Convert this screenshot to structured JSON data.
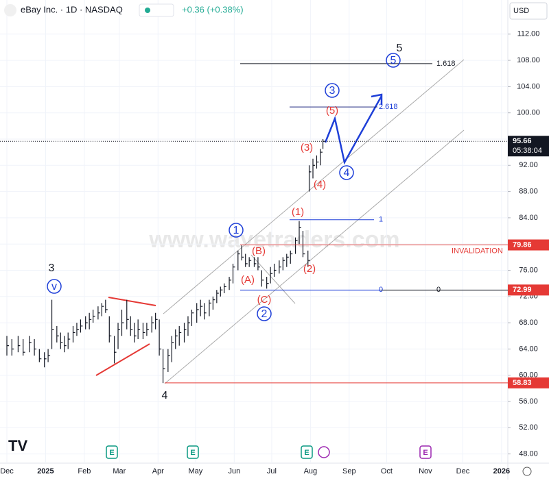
{
  "chart_data": {
    "type": "ohlc",
    "title": "eBay Inc. · 1D · NASDAQ",
    "change": "+0.36 (+0.38%)",
    "currency": "USD",
    "watermark": "www.wavetraders.com",
    "countdown": "05:38:04",
    "invalidation": "INVALIDATION",
    "ylim": [
      46.6,
      117.2
    ],
    "yticks": [
      48.0,
      52.0,
      56.0,
      60.0,
      64.0,
      68.0,
      72.0,
      76.0,
      80.0,
      84.0,
      88.0,
      92.0,
      96.0,
      100.0,
      104.0,
      108.0,
      112.0
    ],
    "ytick_labels": [
      "48.00",
      "52.00",
      "56.00",
      "60.00",
      "64.00",
      "68.00",
      "72.00",
      "76.00",
      "80.00",
      "84.00",
      "88.00",
      "92.00",
      "96.00",
      "100.00",
      "104.00",
      "108.00",
      "112.00"
    ],
    "xlim": [
      -5.5,
      401
    ],
    "xticks": [
      {
        "value": 0,
        "label": "Dec"
      },
      {
        "value": 31,
        "label": "2025"
      },
      {
        "value": 62,
        "label": "Feb"
      },
      {
        "value": 90,
        "label": "Mar"
      },
      {
        "value": 121,
        "label": "Apr"
      },
      {
        "value": 151,
        "label": "May"
      },
      {
        "value": 182,
        "label": "Jun"
      },
      {
        "value": 212,
        "label": "Jul"
      },
      {
        "value": 243,
        "label": "Aug"
      },
      {
        "value": 274,
        "label": "Sep"
      },
      {
        "value": 304,
        "label": "Oct"
      },
      {
        "value": 335,
        "label": "Nov"
      },
      {
        "value": 365,
        "label": "Dec"
      },
      {
        "value": 396,
        "label": "2026"
      }
    ],
    "bars": {
      "x": [
        0,
        4,
        9,
        13,
        18,
        22,
        26,
        30,
        33,
        36,
        40,
        43,
        46,
        49,
        53,
        56,
        59,
        63,
        66,
        69,
        73,
        76,
        79,
        82,
        86,
        89,
        92,
        96,
        99,
        102,
        105,
        109,
        112,
        116,
        119,
        122,
        125,
        129,
        132,
        135,
        138,
        142,
        145,
        148,
        152,
        155,
        158,
        162,
        165,
        168,
        171,
        174,
        178,
        181,
        185,
        188,
        191,
        194,
        198,
        201,
        204,
        208,
        211,
        214,
        218,
        221,
        224,
        227,
        231,
        234,
        237,
        241,
        242,
        245,
        248,
        251,
        253
      ],
      "high": [
        66,
        65.5,
        66,
        65.5,
        66,
        65.5,
        64,
        63.5,
        64,
        71.5,
        67.5,
        66.5,
        66,
        66.5,
        67.5,
        68,
        68.5,
        69,
        69.5,
        70,
        70.5,
        71,
        71.5,
        69,
        66,
        68,
        70,
        71.5,
        69,
        68,
        68.5,
        68,
        68,
        69,
        69.5,
        68.5,
        64,
        64,
        66,
        67,
        67.5,
        68,
        69,
        70,
        71,
        71.5,
        71,
        71.5,
        72,
        73,
        73.5,
        74,
        75,
        77,
        79,
        79.8,
        78.5,
        78,
        78,
        78,
        76,
        75,
        76.5,
        77,
        77.5,
        78,
        78.5,
        79,
        81,
        83.5,
        82,
        79,
        92,
        93,
        93.5,
        94.5,
        96
      ],
      "low": [
        63,
        63,
        63.5,
        63,
        63.5,
        63,
        62,
        61.2,
        62,
        64,
        65,
        64,
        63.5,
        64,
        65,
        66,
        66.5,
        67,
        67,
        68,
        68.5,
        69,
        69.5,
        65,
        61.8,
        64,
        66,
        67,
        66,
        65,
        65.5,
        65.5,
        66,
        66.5,
        67,
        63,
        58.8,
        60.5,
        62,
        64,
        64.5,
        65,
        66,
        67.5,
        68,
        69,
        68.5,
        69,
        70,
        71,
        72,
        72.5,
        73,
        74,
        76,
        77.5,
        76.5,
        76.5,
        76.5,
        76,
        73.5,
        73.2,
        74,
        75,
        75.5,
        76,
        76.5,
        77,
        78.5,
        80,
        78,
        76.5,
        88,
        90,
        91.5,
        92,
        94.5
      ],
      "close": [
        64.5,
        64,
        64.5,
        63.5,
        65,
        64,
        62.5,
        62.5,
        63,
        67,
        66,
        65,
        64.5,
        65.5,
        66.5,
        67,
        67.5,
        68,
        68.5,
        69,
        69.5,
        70.5,
        70,
        66,
        63.5,
        67,
        68,
        68.5,
        67,
        66,
        67,
        66.5,
        67,
        68,
        68.5,
        64,
        61,
        63,
        65,
        66,
        66.5,
        67,
        68,
        69.5,
        70,
        70.5,
        69.5,
        71,
        71.5,
        72.5,
        73,
        73.5,
        74.5,
        76.5,
        78.5,
        78,
        77,
        77.5,
        77,
        76.5,
        74.5,
        74,
        75.5,
        76,
        76.5,
        77.5,
        78,
        78.5,
        80.5,
        82.5,
        78.5,
        77.5,
        91,
        92,
        92.5,
        94,
        95.66
      ]
    },
    "last_price": 95.66,
    "levels": [
      79.86,
      72.99,
      58.83
    ],
    "fib_levels": [
      {
        "value": 107.5,
        "label": "1.618"
      },
      {
        "value": 100.9,
        "label": "2.618"
      },
      {
        "value": 83.7,
        "label": "1"
      },
      {
        "value": 72.99,
        "label": "0"
      }
    ],
    "fib_extra": "0",
    "waves": [
      "3",
      "v",
      "4",
      "1",
      "(B)",
      "(A)",
      "(C)",
      "2",
      "(1)",
      "(2)",
      "(3)",
      "(4)",
      "(5)",
      "3",
      "4",
      "5",
      "5"
    ],
    "events": [
      "E",
      "E",
      "E",
      "E"
    ]
  }
}
